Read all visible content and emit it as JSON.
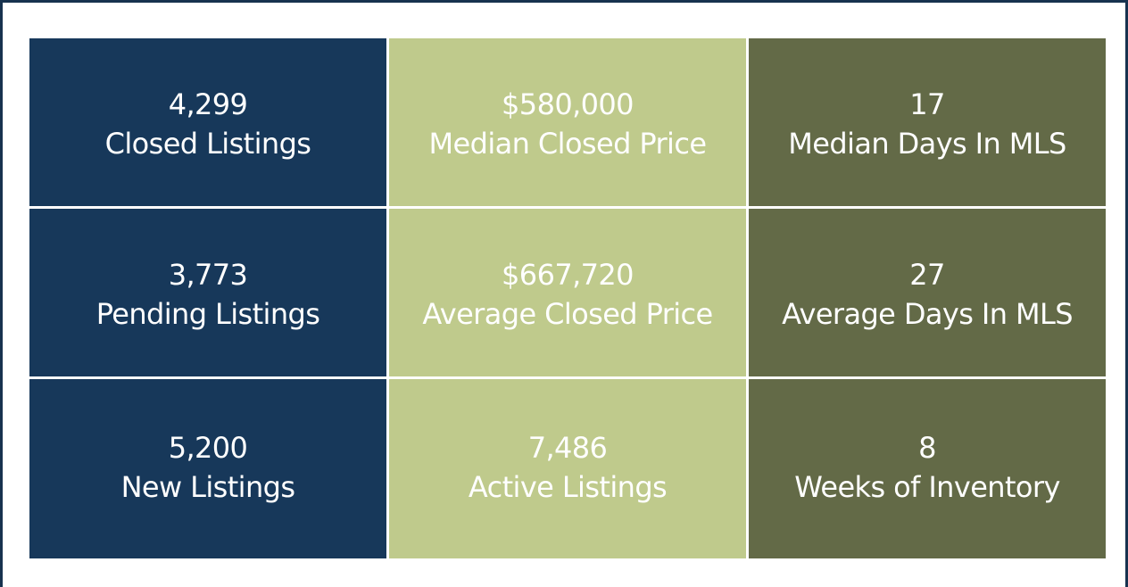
{
  "colors": {
    "navy": "#17385a",
    "sage": "#bfca8c",
    "olive": "#636a47",
    "frame": "#17324f"
  },
  "stats": {
    "closed_listings": {
      "value": "4,299",
      "label": "Closed Listings"
    },
    "median_closed_price": {
      "value": "$580,000",
      "label": "Median Closed Price"
    },
    "median_days_in_mls": {
      "value": "17",
      "label": "Median Days In MLS"
    },
    "pending_listings": {
      "value": "3,773",
      "label": "Pending Listings"
    },
    "average_closed_price": {
      "value": "$667,720",
      "label": "Average Closed Price"
    },
    "average_days_in_mls": {
      "value": "27",
      "label": "Average Days In MLS"
    },
    "new_listings": {
      "value": "5,200",
      "label": "New Listings"
    },
    "active_listings": {
      "value": "7,486",
      "label": "Active Listings"
    },
    "weeks_of_inventory": {
      "value": "8",
      "label": "Weeks of Inventory"
    }
  }
}
